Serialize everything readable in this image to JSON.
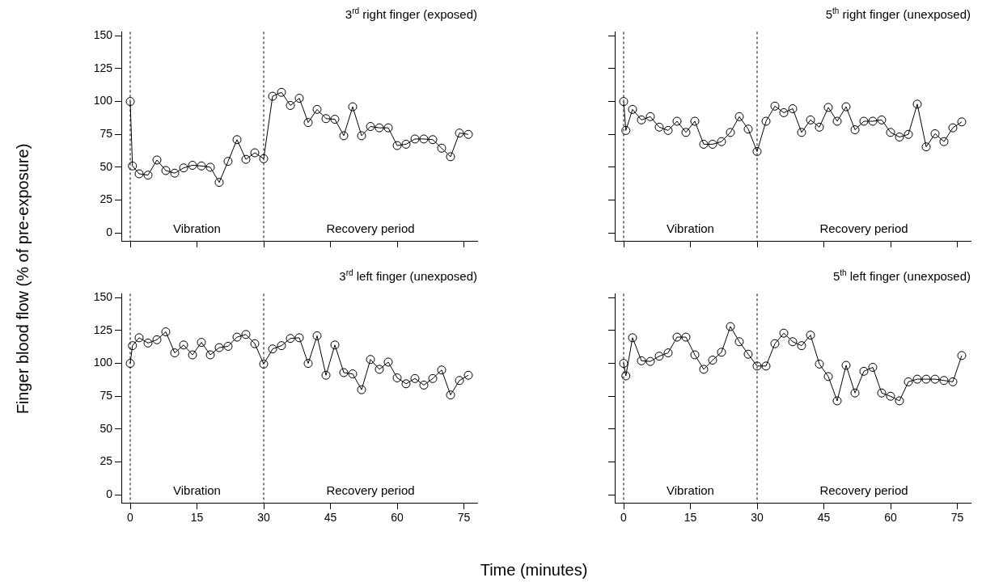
{
  "chart_data": [
    {
      "type": "line",
      "title": "3$^{rd}$ right finger (exposed)",
      "ylabel": "Finger blood flow (% of pre-exposure)",
      "x": [
        0,
        0.5,
        2,
        4,
        6,
        8,
        10,
        12,
        14,
        16,
        18,
        20,
        22,
        24,
        26,
        28,
        30,
        32,
        34,
        36,
        38,
        40,
        42,
        44,
        46,
        48,
        50,
        52,
        54,
        56,
        58,
        60,
        62,
        64,
        66,
        68,
        70,
        72,
        74,
        76
      ],
      "series": [
        {
          "color": "#000000",
          "values": [
            100,
            51,
            45,
            44,
            55.5,
            47.5,
            45.5,
            49.5,
            51.5,
            51,
            50,
            38.5,
            54.5,
            71,
            56,
            61,
            56.5,
            104,
            107,
            97,
            102.5,
            84,
            94,
            87,
            86.5,
            74,
            96,
            74,
            81,
            80,
            80,
            66.5,
            67.5,
            71.5,
            71.5,
            71,
            64.5,
            58,
            76,
            75
          ]
        }
      ],
      "xlim": [
        -2,
        78
      ],
      "xticks": [
        0,
        15,
        30,
        45,
        60,
        75
      ],
      "ylim": [
        -6,
        153
      ],
      "yticks": [
        0,
        25,
        50,
        75,
        100,
        125,
        150
      ],
      "tick_labels": "y",
      "grid": false,
      "legend": false,
      "marker": "circle",
      "line_style": "solid",
      "ref_lines": [
        {
          "axis": "x",
          "value": 0,
          "line_style": "dashed"
        },
        {
          "axis": "x",
          "value": 30,
          "line_style": "dashed"
        }
      ],
      "annotations": [
        "Vibration",
        "Recovery period"
      ]
    },
    {
      "type": "line",
      "title": "5$^{th}$ right finger (unexposed)",
      "x": [
        0,
        0.5,
        2,
        4,
        6,
        8,
        10,
        12,
        14,
        16,
        18,
        20,
        22,
        24,
        26,
        28,
        30,
        32,
        34,
        36,
        38,
        40,
        42,
        44,
        46,
        48,
        50,
        52,
        54,
        56,
        58,
        60,
        62,
        64,
        66,
        68,
        70,
        72,
        74,
        76
      ],
      "series": [
        {
          "color": "#000000",
          "values": [
            100,
            78,
            94,
            86,
            88.5,
            80.5,
            78,
            85,
            76.5,
            85,
            67.5,
            67.5,
            69.5,
            76.5,
            88.5,
            79,
            62,
            85,
            96.5,
            91.5,
            94.5,
            76.5,
            86,
            80.5,
            95.5,
            85,
            96,
            78.5,
            85,
            85,
            86,
            76.5,
            73,
            75,
            98,
            65.5,
            75.5,
            69.5,
            80,
            84.5
          ]
        }
      ],
      "xlim": [
        -2,
        78
      ],
      "xticks": [
        0,
        15,
        30,
        45,
        60,
        75
      ],
      "ylim": [
        -6,
        153
      ],
      "yticks": [
        0,
        25,
        50,
        75,
        100,
        125,
        150
      ],
      "tick_labels": false,
      "grid": false,
      "legend": false,
      "marker": "circle",
      "line_style": "solid",
      "ref_lines": [
        {
          "axis": "x",
          "value": 0,
          "line_style": "dashed"
        },
        {
          "axis": "x",
          "value": 30,
          "line_style": "dashed"
        }
      ],
      "annotations": [
        "Vibration",
        "Recovery period"
      ]
    },
    {
      "type": "line",
      "title": "3$^{rd}$ left finger (unexposed)",
      "xlabel": "Time (minutes)",
      "x": [
        0,
        0.5,
        2,
        4,
        6,
        8,
        10,
        12,
        14,
        16,
        18,
        20,
        22,
        24,
        26,
        28,
        30,
        32,
        34,
        36,
        38,
        40,
        42,
        44,
        46,
        48,
        50,
        52,
        54,
        56,
        58,
        60,
        62,
        64,
        66,
        68,
        70,
        72,
        74,
        76
      ],
      "series": [
        {
          "color": "#000000",
          "values": [
            100,
            113.5,
            119.5,
            115.5,
            118,
            124,
            108,
            114,
            106.5,
            116,
            106.5,
            112,
            113,
            120,
            122,
            115,
            99.5,
            111,
            113.5,
            119,
            119.5,
            100,
            121,
            91,
            114,
            93,
            92,
            80,
            103,
            95.5,
            101,
            89,
            84.5,
            88.5,
            83.5,
            88.5,
            95,
            76,
            87,
            91
          ]
        }
      ],
      "xlim": [
        -2,
        78
      ],
      "xticks": [
        0,
        15,
        30,
        45,
        60,
        75
      ],
      "ylim": [
        -6,
        153
      ],
      "yticks": [
        0,
        25,
        50,
        75,
        100,
        125,
        150
      ],
      "grid": false,
      "legend": false,
      "marker": "circle",
      "line_style": "solid",
      "ref_lines": [
        {
          "axis": "x",
          "value": 0,
          "line_style": "dashed"
        },
        {
          "axis": "x",
          "value": 30,
          "line_style": "dashed"
        }
      ],
      "annotations": [
        "Vibration",
        "Recovery period"
      ]
    },
    {
      "type": "line",
      "title": "5$^{th}$ left finger (unexposed)",
      "x": [
        0,
        0.5,
        2,
        4,
        6,
        8,
        10,
        12,
        14,
        16,
        18,
        20,
        22,
        24,
        26,
        28,
        30,
        32,
        34,
        36,
        38,
        40,
        42,
        44,
        46,
        48,
        50,
        52,
        54,
        56,
        58,
        60,
        62,
        64,
        66,
        68,
        70,
        72,
        74,
        76
      ],
      "series": [
        {
          "color": "#000000",
          "values": [
            100,
            90.5,
            119.5,
            102,
            101.5,
            105.5,
            108,
            120,
            120,
            106.5,
            95.5,
            102.5,
            108.5,
            128,
            116.5,
            107,
            98,
            98,
            115,
            123,
            116.5,
            113.5,
            121.5,
            99.5,
            90,
            71.5,
            98.5,
            77.5,
            94,
            97,
            77.5,
            75,
            71.5,
            86,
            88,
            88,
            88,
            87,
            86,
            106
          ]
        }
      ],
      "xlim": [
        -2,
        78
      ],
      "xticks": [
        0,
        15,
        30,
        45,
        60,
        75
      ],
      "ylim": [
        -6,
        153
      ],
      "yticks": [
        0,
        25,
        50,
        75,
        100,
        125,
        150
      ],
      "tick_labels": "x",
      "grid": false,
      "legend": false,
      "marker": "circle",
      "line_style": "solid",
      "ref_lines": [
        {
          "axis": "x",
          "value": 0,
          "line_style": "dashed"
        },
        {
          "axis": "x",
          "value": 30,
          "line_style": "dashed"
        }
      ],
      "annotations": [
        "Vibration",
        "Recovery period"
      ]
    }
  ]
}
